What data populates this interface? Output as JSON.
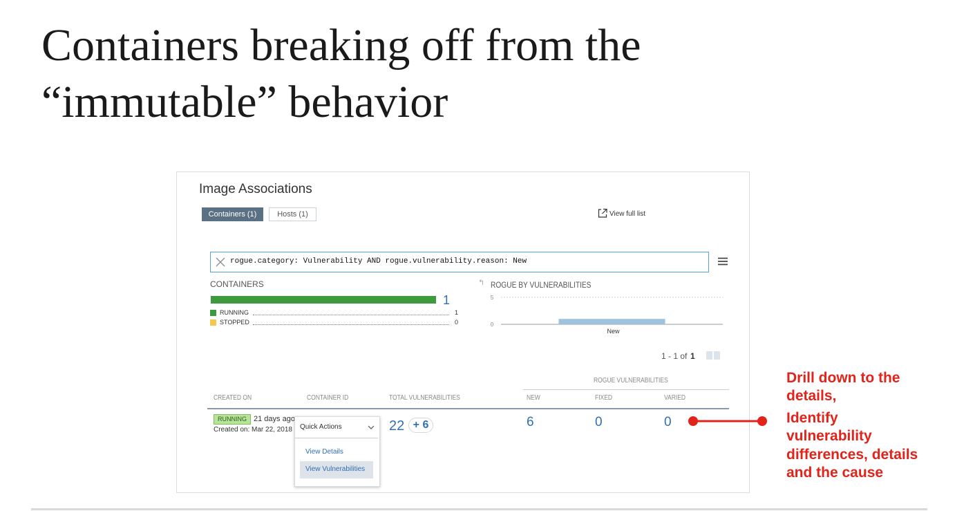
{
  "title": [
    "Containers breaking off from the",
    "“immutable” behavior"
  ],
  "panel": {
    "heading": "Image Associations",
    "tabs": [
      "Containers (1)",
      "Hosts (1)"
    ],
    "view_full_list": "View full list",
    "search": "rogue.category: Vulnerability AND rogue.vulnerability.reason: New",
    "containers": {
      "label": "CONTAINERS",
      "total": 1,
      "legend": [
        {
          "name": "RUNNING",
          "count": 1
        },
        {
          "name": "STOPPED",
          "count": 0
        }
      ]
    },
    "rogue_chart": {
      "type": "bar",
      "title": "ROGUE BY VULNERABILITIES",
      "categories": [
        "New"
      ],
      "values": [
        1
      ],
      "ylim": [
        0,
        5
      ],
      "yticks": [
        0,
        5
      ]
    },
    "pagination": {
      "range": "1 - 1 of",
      "total": 1
    },
    "table": {
      "group_header": "ROGUE VULNERABILITIES",
      "columns": [
        "CREATED ON",
        "CONTAINER ID",
        "TOTAL VULNERABILITIES",
        "NEW",
        "FIXED",
        "VARIED"
      ],
      "rows": [
        {
          "status": "RUNNING",
          "age": "21 days ago",
          "created": "Created on: Mar 22, 2018",
          "total": 22,
          "delta": "+ 6",
          "new": 6,
          "fixed": 0,
          "varied": 0
        }
      ]
    },
    "dropdown": {
      "label": "Quick Actions",
      "items": [
        "View Details",
        "View Vulnerabilities"
      ]
    }
  },
  "annotations": [
    "Drill down to the",
    "details,",
    "Identify",
    "vulnerability",
    "differences, details",
    "and the cause"
  ]
}
